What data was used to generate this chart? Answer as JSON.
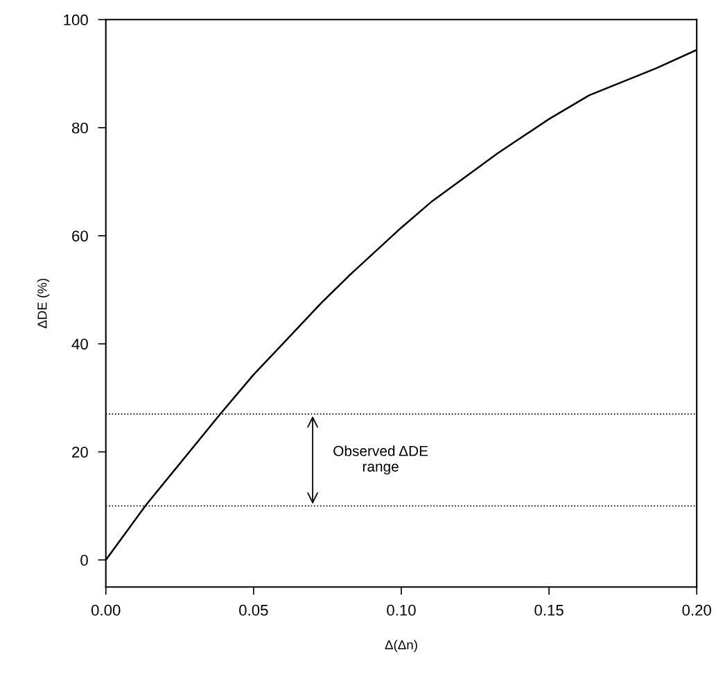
{
  "chart_data": {
    "type": "line",
    "xlabel": "Δ(Δn)",
    "ylabel": "ΔDE (%)",
    "x": [
      0,
      0.0135,
      0.0387,
      0.05,
      0.0625,
      0.073,
      0.0823,
      0.1,
      0.11,
      0.1327,
      0.15,
      0.1636,
      0.1863,
      0.2
    ],
    "series": [
      {
        "color": "#000000",
        "values": [
          0,
          10.1,
          27,
          34.3,
          41.5,
          47.6,
          52.6,
          61.5,
          66.2,
          75.3,
          81.6,
          86,
          91,
          94.4
        ]
      }
    ],
    "xlim": [
      0,
      0.2
    ],
    "ylim": [
      -5,
      100
    ],
    "xticks": [
      {
        "value": 0,
        "label": "0.00"
      },
      {
        "value": 0.05,
        "label": "0.05"
      },
      {
        "value": 0.1,
        "label": "0.10"
      },
      {
        "value": 0.15,
        "label": "0.15"
      },
      {
        "value": 0.2,
        "label": "0.20"
      }
    ],
    "yticks": [
      0,
      20,
      40,
      60,
      80,
      100
    ],
    "ref_lines": [
      {
        "axis": "y",
        "value": 27,
        "label": null,
        "line_style": "dotted",
        "color": "#000000"
      },
      {
        "axis": "y",
        "value": 10,
        "label": null,
        "line_style": "dotted",
        "color": "#000000"
      }
    ],
    "annotations": [
      "Observed ΔDE\nrange"
    ],
    "grid": false,
    "legend": false,
    "marker": "none",
    "line_style": "solid"
  }
}
